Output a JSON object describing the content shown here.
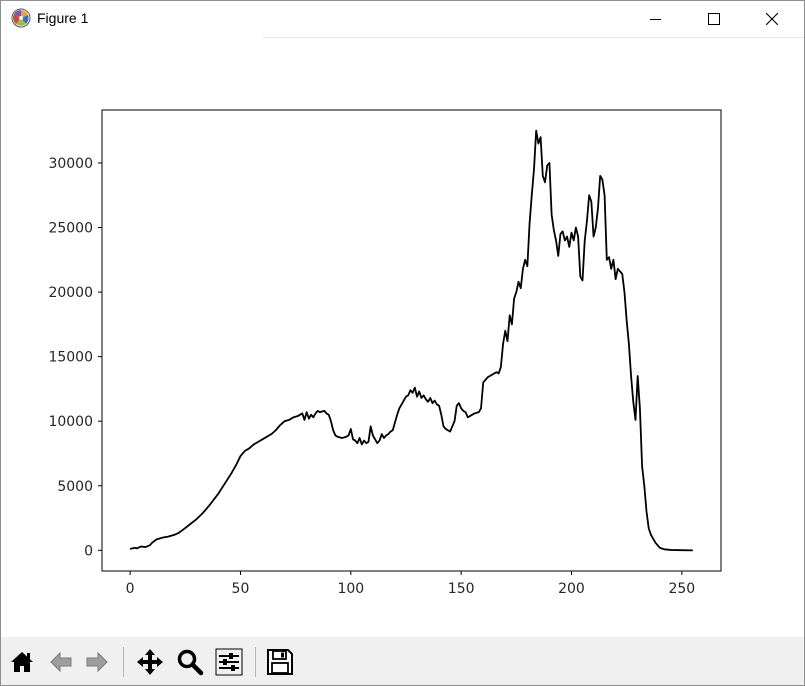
{
  "window": {
    "title": "Figure 1",
    "app_icon": "matplotlib-logo-icon",
    "controls": [
      "minimize-icon",
      "maximize-icon",
      "close-icon"
    ]
  },
  "toolbar": {
    "buttons": [
      {
        "name": "home-button",
        "icon": "home-icon"
      },
      {
        "name": "back-button",
        "icon": "back-arrow-icon"
      },
      {
        "name": "forward-button",
        "icon": "forward-arrow-icon"
      },
      {
        "name": "pan-button",
        "icon": "move-icon"
      },
      {
        "name": "zoom-button",
        "icon": "magnifier-icon"
      },
      {
        "name": "configure-subplots-button",
        "icon": "sliders-icon"
      },
      {
        "name": "save-button",
        "icon": "floppy-disk-icon"
      }
    ]
  },
  "chart_data": {
    "type": "line",
    "title": "",
    "xlabel": "",
    "ylabel": "",
    "xlim": [
      -12.75,
      267.75
    ],
    "ylim": [
      -1600,
      34100
    ],
    "grid": false,
    "legend": "none",
    "line_color": "#000000",
    "xticks": [
      0,
      50,
      100,
      150,
      200,
      250
    ],
    "yticks": [
      0,
      5000,
      10000,
      15000,
      20000,
      25000,
      30000
    ],
    "xtick_labels": [
      "0",
      "50",
      "100",
      "150",
      "200",
      "250"
    ],
    "ytick_labels": [
      "0",
      "5000",
      "10000",
      "15000",
      "20000",
      "25000",
      "30000"
    ],
    "series": [
      {
        "points": [
          [
            0,
            100
          ],
          [
            2,
            200
          ],
          [
            3,
            150
          ],
          [
            5,
            300
          ],
          [
            7,
            250
          ],
          [
            9,
            400
          ],
          [
            10,
            600
          ],
          [
            12,
            850
          ],
          [
            15,
            1000
          ],
          [
            17,
            1050
          ],
          [
            20,
            1200
          ],
          [
            22,
            1350
          ],
          [
            24,
            1600
          ],
          [
            27,
            2000
          ],
          [
            30,
            2400
          ],
          [
            33,
            2900
          ],
          [
            36,
            3500
          ],
          [
            40,
            4400
          ],
          [
            43,
            5200
          ],
          [
            46,
            6000
          ],
          [
            48,
            6600
          ],
          [
            50,
            7300
          ],
          [
            52,
            7700
          ],
          [
            54,
            7900
          ],
          [
            56,
            8200
          ],
          [
            58,
            8400
          ],
          [
            60,
            8600
          ],
          [
            62,
            8800
          ],
          [
            64,
            9000
          ],
          [
            66,
            9300
          ],
          [
            68,
            9700
          ],
          [
            70,
            10000
          ],
          [
            72,
            10100
          ],
          [
            74,
            10300
          ],
          [
            76,
            10400
          ],
          [
            78,
            10600
          ],
          [
            79,
            10100
          ],
          [
            80,
            10700
          ],
          [
            81,
            10200
          ],
          [
            82,
            10500
          ],
          [
            83,
            10300
          ],
          [
            84,
            10600
          ],
          [
            85,
            10800
          ],
          [
            86,
            10700
          ],
          [
            88,
            10800
          ],
          [
            89,
            10600
          ],
          [
            90,
            10500
          ],
          [
            91,
            10000
          ],
          [
            92,
            9300
          ],
          [
            93,
            8900
          ],
          [
            94,
            8800
          ],
          [
            96,
            8700
          ],
          [
            98,
            8800
          ],
          [
            99,
            8900
          ],
          [
            100,
            9400
          ],
          [
            101,
            8600
          ],
          [
            102,
            8500
          ],
          [
            103,
            8300
          ],
          [
            104,
            8700
          ],
          [
            105,
            8200
          ],
          [
            106,
            8500
          ],
          [
            107,
            8300
          ],
          [
            108,
            8400
          ],
          [
            109,
            9600
          ],
          [
            110,
            8900
          ],
          [
            111,
            8600
          ],
          [
            112,
            8300
          ],
          [
            113,
            8500
          ],
          [
            114,
            9000
          ],
          [
            115,
            8700
          ],
          [
            116,
            8900
          ],
          [
            117,
            9000
          ],
          [
            118,
            9200
          ],
          [
            119,
            9300
          ],
          [
            120,
            9900
          ],
          [
            121,
            10500
          ],
          [
            122,
            11000
          ],
          [
            123,
            11300
          ],
          [
            124,
            11600
          ],
          [
            125,
            11900
          ],
          [
            126,
            12000
          ],
          [
            127,
            12400
          ],
          [
            128,
            12200
          ],
          [
            129,
            12600
          ],
          [
            130,
            11900
          ],
          [
            131,
            12300
          ],
          [
            132,
            11800
          ],
          [
            133,
            12000
          ],
          [
            134,
            11700
          ],
          [
            135,
            11500
          ],
          [
            136,
            11800
          ],
          [
            137,
            11400
          ],
          [
            138,
            11600
          ],
          [
            139,
            11300
          ],
          [
            140,
            11200
          ],
          [
            141,
            10500
          ],
          [
            142,
            9600
          ],
          [
            143,
            9400
          ],
          [
            144,
            9300
          ],
          [
            145,
            9200
          ],
          [
            146,
            9600
          ],
          [
            147,
            10000
          ],
          [
            148,
            11200
          ],
          [
            149,
            11400
          ],
          [
            150,
            11000
          ],
          [
            151,
            10800
          ],
          [
            152,
            10700
          ],
          [
            153,
            10300
          ],
          [
            154,
            10400
          ],
          [
            156,
            10600
          ],
          [
            158,
            10700
          ],
          [
            159,
            11000
          ],
          [
            160,
            13000
          ],
          [
            161,
            13200
          ],
          [
            162,
            13400
          ],
          [
            163,
            13500
          ],
          [
            165,
            13700
          ],
          [
            166,
            13800
          ],
          [
            167,
            13700
          ],
          [
            168,
            14200
          ],
          [
            169,
            16000
          ],
          [
            170,
            17000
          ],
          [
            171,
            16200
          ],
          [
            172,
            18200
          ],
          [
            173,
            17500
          ],
          [
            174,
            19500
          ],
          [
            175,
            20000
          ],
          [
            176,
            20800
          ],
          [
            177,
            20300
          ],
          [
            178,
            21800
          ],
          [
            179,
            22500
          ],
          [
            180,
            22000
          ],
          [
            181,
            25300
          ],
          [
            182,
            27500
          ],
          [
            183,
            29500
          ],
          [
            184,
            32500
          ],
          [
            185,
            31500
          ],
          [
            186,
            32000
          ],
          [
            187,
            29000
          ],
          [
            188,
            28500
          ],
          [
            189,
            29800
          ],
          [
            190,
            30000
          ],
          [
            191,
            26000
          ],
          [
            192,
            24800
          ],
          [
            193,
            24000
          ],
          [
            194,
            22800
          ],
          [
            195,
            24500
          ],
          [
            196,
            24700
          ],
          [
            197,
            24000
          ],
          [
            198,
            24300
          ],
          [
            199,
            23500
          ],
          [
            200,
            24600
          ],
          [
            201,
            24000
          ],
          [
            202,
            25000
          ],
          [
            203,
            24300
          ],
          [
            204,
            21200
          ],
          [
            205,
            20900
          ],
          [
            206,
            24000
          ],
          [
            207,
            25500
          ],
          [
            208,
            27500
          ],
          [
            209,
            27000
          ],
          [
            210,
            24300
          ],
          [
            211,
            25000
          ],
          [
            212,
            26500
          ],
          [
            213,
            29000
          ],
          [
            214,
            28700
          ],
          [
            215,
            27500
          ],
          [
            216,
            22500
          ],
          [
            217,
            22700
          ],
          [
            218,
            21800
          ],
          [
            219,
            22500
          ],
          [
            220,
            21000
          ],
          [
            221,
            21800
          ],
          [
            222,
            21600
          ],
          [
            223,
            21400
          ],
          [
            224,
            20000
          ],
          [
            225,
            17800
          ],
          [
            226,
            16000
          ],
          [
            227,
            13500
          ],
          [
            228,
            11500
          ],
          [
            229,
            10100
          ],
          [
            230,
            13500
          ],
          [
            231,
            11000
          ],
          [
            232,
            6500
          ],
          [
            233,
            5000
          ],
          [
            234,
            3000
          ],
          [
            235,
            1700
          ],
          [
            236,
            1200
          ],
          [
            237,
            900
          ],
          [
            238,
            600
          ],
          [
            239,
            400
          ],
          [
            240,
            200
          ],
          [
            242,
            80
          ],
          [
            245,
            30
          ],
          [
            250,
            10
          ],
          [
            255,
            0
          ]
        ]
      }
    ]
  }
}
